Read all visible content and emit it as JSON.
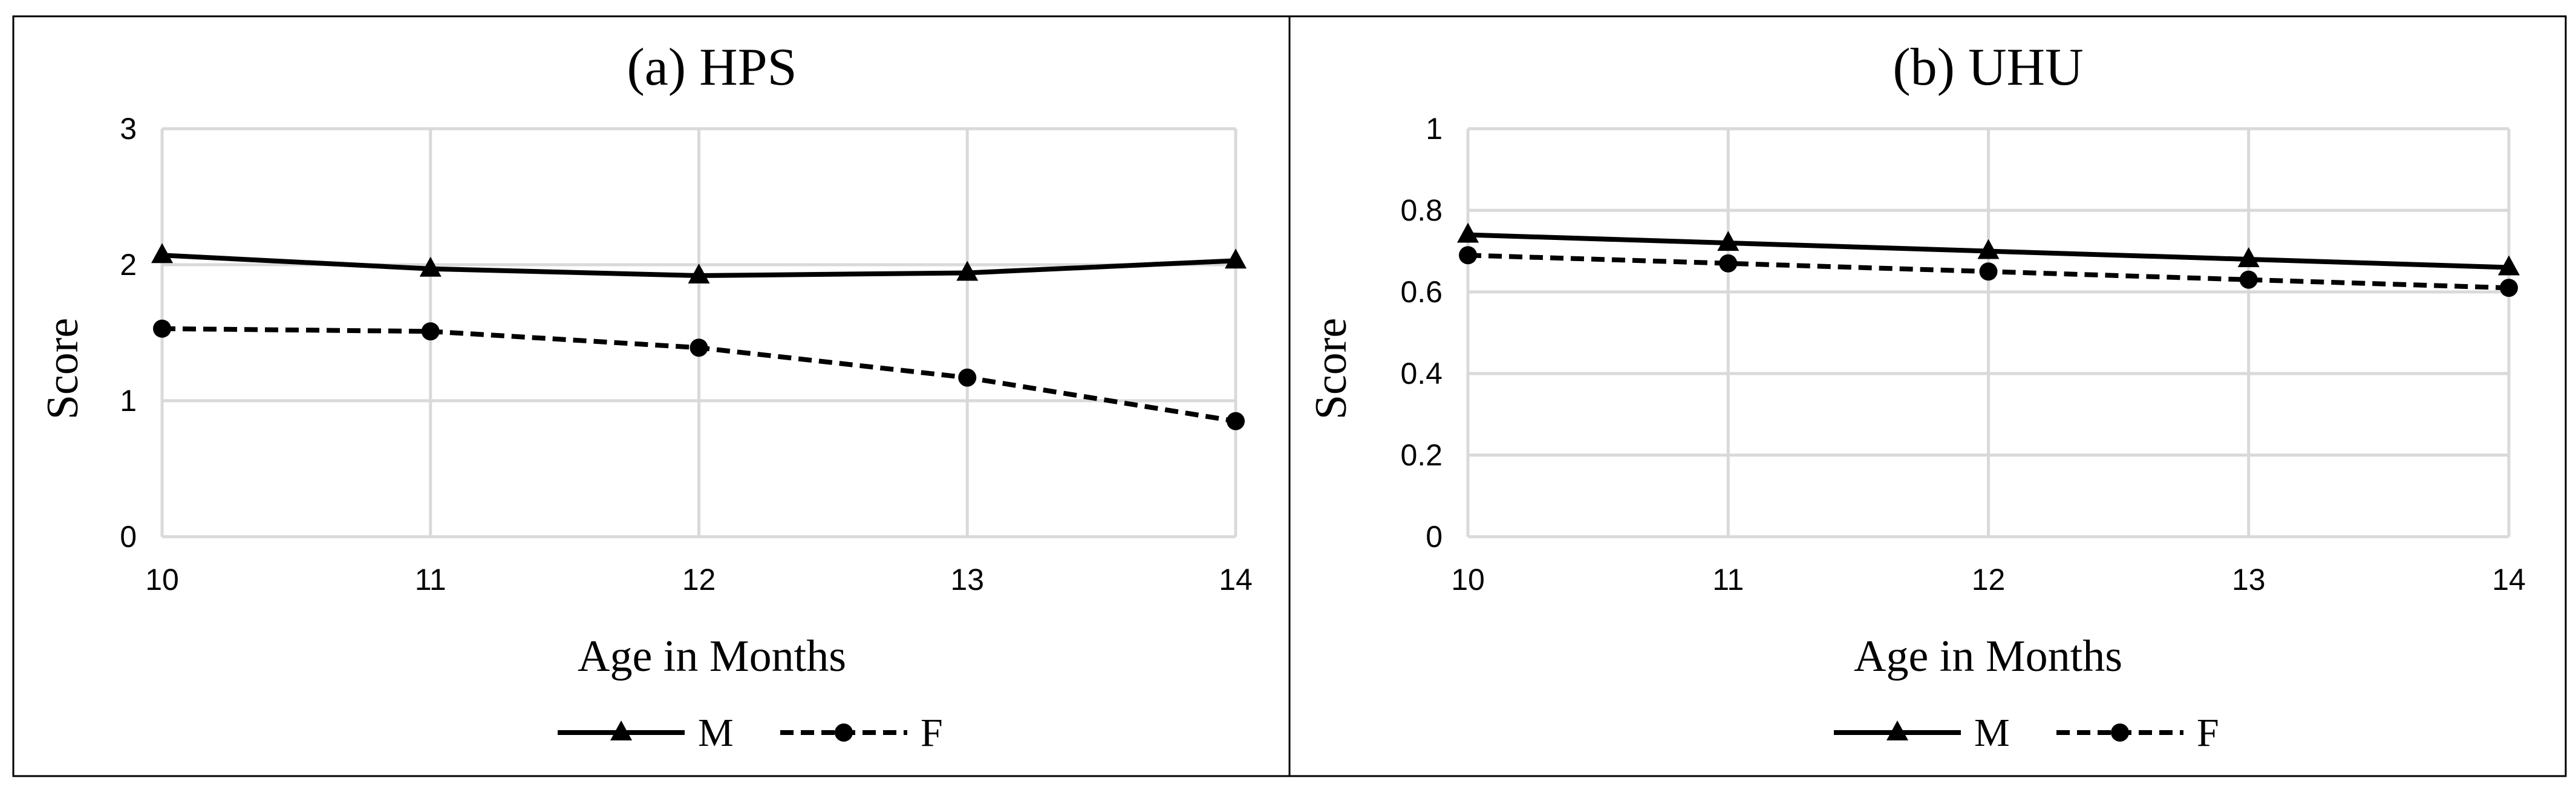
{
  "chart_data": [
    {
      "type": "line",
      "title": "(a) HPS",
      "xlabel": "Age in Months",
      "ylabel": "Score",
      "x": [
        10,
        11,
        12,
        13,
        14
      ],
      "xlim": [
        10,
        14
      ],
      "ylim": [
        0,
        3
      ],
      "yticks": [
        0,
        1,
        2,
        3
      ],
      "grid": true,
      "legend_position": "bottom",
      "series": [
        {
          "name": "M",
          "values": [
            2.07,
            1.97,
            1.92,
            1.94,
            2.03
          ],
          "line_style": "solid",
          "marker": "triangle",
          "color": "#000000"
        },
        {
          "name": "F",
          "values": [
            1.53,
            1.51,
            1.39,
            1.17,
            0.85
          ],
          "line_style": "dashed",
          "marker": "circle",
          "color": "#000000"
        }
      ]
    },
    {
      "type": "line",
      "title": "(b) UHU",
      "xlabel": "Age in Months",
      "ylabel": "Score",
      "x": [
        10,
        11,
        12,
        13,
        14
      ],
      "xlim": [
        10,
        14
      ],
      "ylim": [
        0,
        1
      ],
      "yticks": [
        0,
        0.2,
        0.4,
        0.6,
        0.8,
        1
      ],
      "grid": true,
      "legend_position": "bottom",
      "series": [
        {
          "name": "M",
          "values": [
            0.74,
            0.72,
            0.7,
            0.68,
            0.66
          ],
          "line_style": "solid",
          "marker": "triangle",
          "color": "#000000"
        },
        {
          "name": "F",
          "values": [
            0.69,
            0.67,
            0.65,
            0.63,
            0.61
          ],
          "line_style": "dashed",
          "marker": "circle",
          "color": "#000000"
        }
      ]
    }
  ]
}
